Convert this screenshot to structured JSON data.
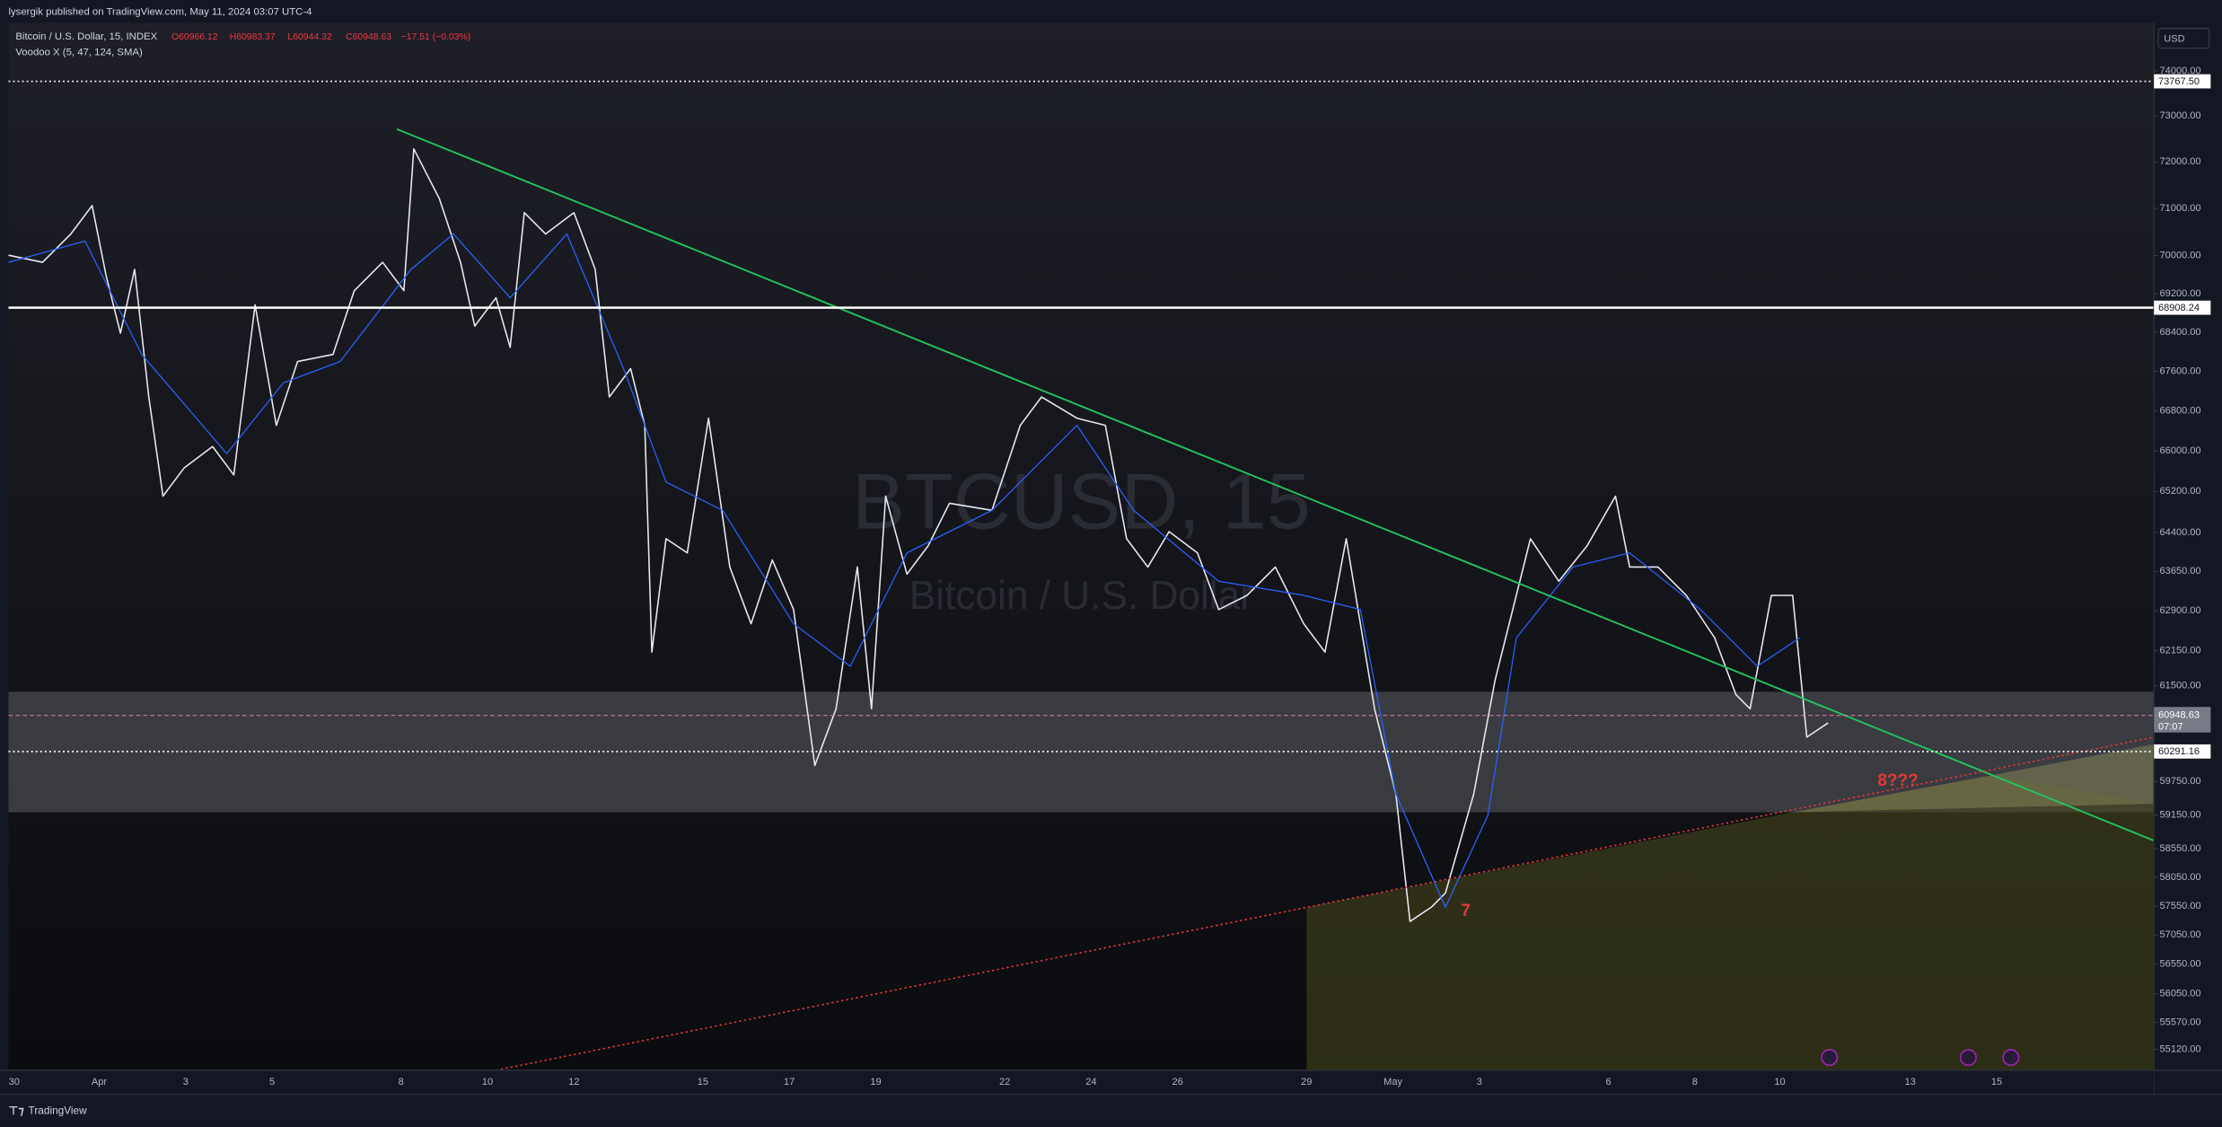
{
  "header": {
    "publisher": "lysergik published on TradingView.com, May 11, 2024 03:07 UTC-4"
  },
  "legend": {
    "symbol": "Bitcoin / U.S. Dollar, 15, INDEX",
    "open": "O60966.12",
    "high": "H60983.37",
    "low": "L60944.32",
    "close": "C60948.63",
    "change": "−17.51 (−0.03%)",
    "indicator": "Voodoo X (5, 47, 124, SMA)"
  },
  "watermark": {
    "symbol": "BTCUSD, 15",
    "name": "Bitcoin / U.S. Dollar"
  },
  "price_axis": {
    "currency": "USD",
    "log": true,
    "range": [
      54775,
      75080
    ],
    "ticks": [
      {
        "value": 74000,
        "label": "74000.00"
      },
      {
        "value": 73000,
        "label": "73000.00"
      },
      {
        "value": 72000,
        "label": "72000.00"
      },
      {
        "value": 71000,
        "label": "71000.00"
      },
      {
        "value": 70000,
        "label": "70000.00"
      },
      {
        "value": 69200,
        "label": "69200.00"
      },
      {
        "value": 68400,
        "label": "68400.00"
      },
      {
        "value": 67600,
        "label": "67600.00"
      },
      {
        "value": 66800,
        "label": "66800.00"
      },
      {
        "value": 66000,
        "label": "66000.00"
      },
      {
        "value": 65200,
        "label": "65200.00"
      },
      {
        "value": 64400,
        "label": "64400.00"
      },
      {
        "value": 63650,
        "label": "63650.00"
      },
      {
        "value": 62900,
        "label": "62900.00"
      },
      {
        "value": 62150,
        "label": "62150.00"
      },
      {
        "value": 61500,
        "label": "61500.00"
      },
      {
        "value": 59750,
        "label": "59750.00"
      },
      {
        "value": 59150,
        "label": "59150.00"
      },
      {
        "value": 58550,
        "label": "58550.00"
      },
      {
        "value": 58050,
        "label": "58050.00"
      },
      {
        "value": 57550,
        "label": "57550.00"
      },
      {
        "value": 57050,
        "label": "57050.00"
      },
      {
        "value": 56550,
        "label": "56550.00"
      },
      {
        "value": 56050,
        "label": "56050.00"
      },
      {
        "value": 55570,
        "label": "55570.00"
      },
      {
        "value": 55120,
        "label": "55120.00"
      }
    ],
    "levels": [
      {
        "value": 73767.5,
        "label": "73767.50",
        "style": "dotted",
        "color": "#ffffff"
      },
      {
        "value": 68908.24,
        "label": "68908.24",
        "style": "solid",
        "color": "#ffffff"
      },
      {
        "value": 60291.16,
        "label": "60291.16",
        "style": "dotted",
        "color": "#ffffff"
      }
    ],
    "last": {
      "value": 60948.63,
      "label": "60948.63",
      "countdown": "07:07",
      "color": "#787b86"
    }
  },
  "time_axis": {
    "labels": [
      "30",
      "Apr",
      "3",
      "5",
      "8",
      "10",
      "12",
      "15",
      "17",
      "19",
      "22",
      "24",
      "26",
      "29",
      "May",
      "3",
      "6",
      "8",
      "10",
      "13",
      "15"
    ]
  },
  "annotations": [
    "8???",
    "7"
  ],
  "footer": {
    "brand": "TradingView"
  }
}
